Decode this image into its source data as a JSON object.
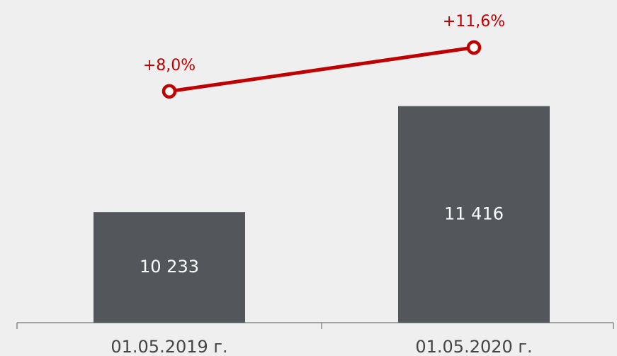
{
  "chart_data": {
    "type": "combo",
    "categories": [
      "01.05.2019 г.",
      "01.05.2020 г."
    ],
    "series": [
      {
        "type": "bar",
        "color": "#53575b",
        "values": [
          10233,
          11416
        ],
        "value_labels": [
          "10 233",
          "11 416"
        ]
      },
      {
        "type": "line",
        "axis": "y2",
        "color": "#c00000",
        "values": [
          8.0,
          11.6
        ],
        "value_labels": [
          "+8,0%",
          "+11,6%"
        ]
      }
    ],
    "ylim": [
      9000,
      12600
    ],
    "y2lim": [
      -11,
      15.5
    ]
  }
}
